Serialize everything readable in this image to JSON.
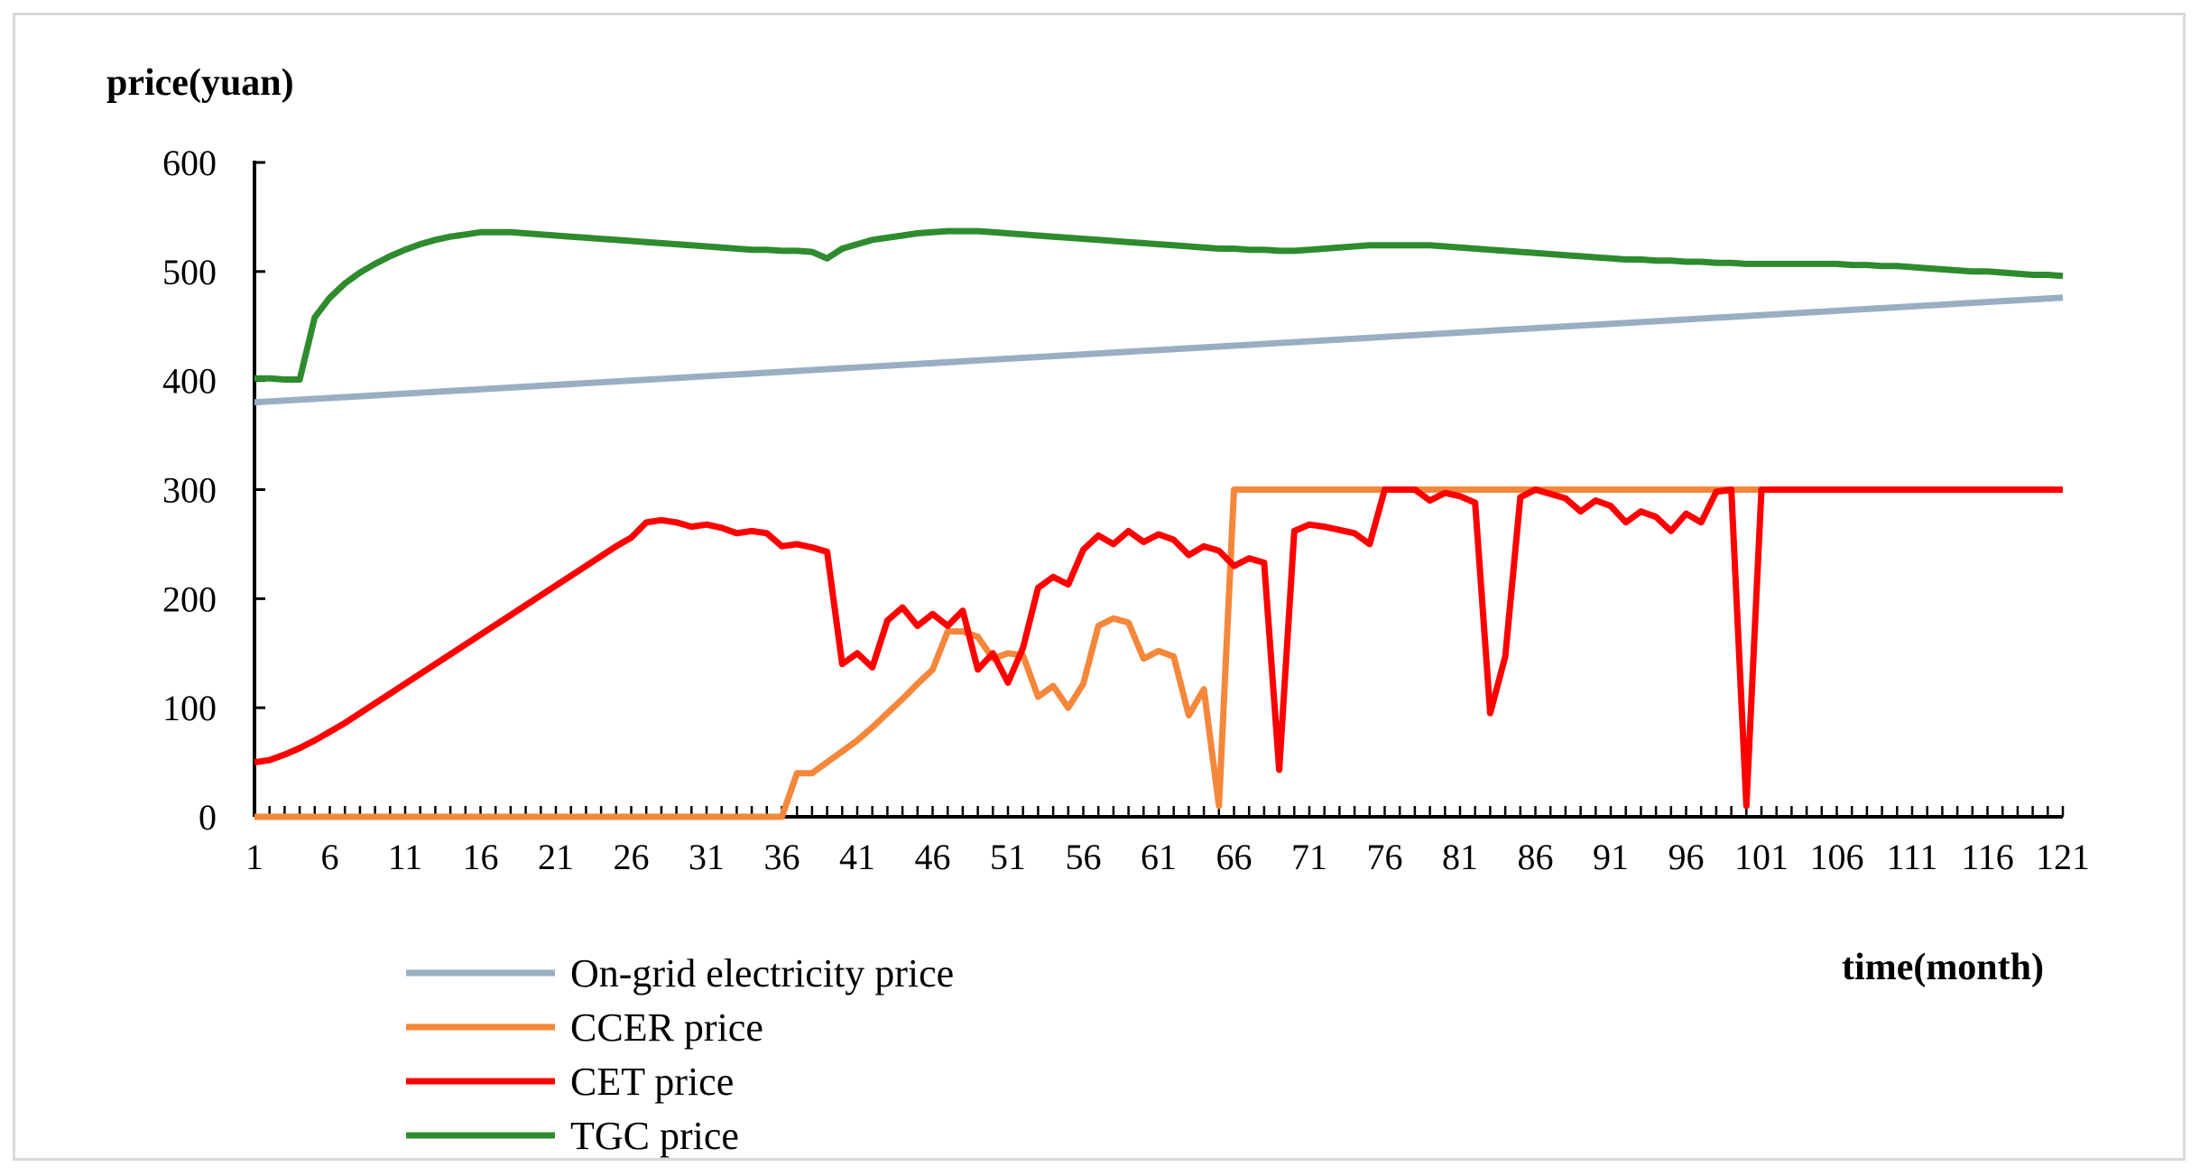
{
  "chart_data": {
    "type": "line",
    "ylabel": "price(yuan)",
    "xlabel": "time(month)",
    "ylim": [
      0,
      600
    ],
    "yticks": [
      0,
      100,
      200,
      300,
      400,
      500,
      600
    ],
    "xlim": [
      1,
      121
    ],
    "xtick_labels": [
      1,
      6,
      11,
      16,
      21,
      26,
      31,
      36,
      41,
      46,
      51,
      56,
      61,
      66,
      71,
      76,
      81,
      86,
      91,
      96,
      101,
      106,
      111,
      116,
      121
    ],
    "grid": false,
    "legend_position": "bottom-left",
    "series": [
      {
        "name": "On-grid electricity price",
        "color": "#9aaec3",
        "points": [
          [
            1,
            380
          ],
          [
            121,
            476
          ]
        ]
      },
      {
        "name": "CCER price",
        "color": "#f5873a",
        "points": [
          [
            1,
            0
          ],
          [
            36,
            0
          ],
          [
            37,
            40
          ],
          [
            38,
            40
          ],
          [
            39,
            50
          ],
          [
            40,
            60
          ],
          [
            41,
            70
          ],
          [
            42,
            82
          ],
          [
            43,
            95
          ],
          [
            44,
            108
          ],
          [
            45,
            122
          ],
          [
            46,
            135
          ],
          [
            47,
            170
          ],
          [
            48,
            170
          ],
          [
            49,
            165
          ],
          [
            50,
            145
          ],
          [
            51,
            150
          ],
          [
            52,
            148
          ],
          [
            53,
            110
          ],
          [
            54,
            120
          ],
          [
            55,
            100
          ],
          [
            56,
            122
          ],
          [
            57,
            175
          ],
          [
            58,
            182
          ],
          [
            59,
            178
          ],
          [
            60,
            145
          ],
          [
            61,
            152
          ],
          [
            62,
            147
          ],
          [
            63,
            93
          ],
          [
            64,
            117
          ],
          [
            65,
            10
          ],
          [
            66,
            300
          ],
          [
            121,
            300
          ]
        ]
      },
      {
        "name": "CET price",
        "color": "#ff0000",
        "points": [
          [
            1,
            50
          ],
          [
            2,
            52
          ],
          [
            3,
            57
          ],
          [
            4,
            63
          ],
          [
            5,
            70
          ],
          [
            6,
            78
          ],
          [
            7,
            86
          ],
          [
            8,
            95
          ],
          [
            9,
            104
          ],
          [
            10,
            113
          ],
          [
            11,
            122
          ],
          [
            12,
            131
          ],
          [
            13,
            140
          ],
          [
            14,
            149
          ],
          [
            15,
            158
          ],
          [
            16,
            167
          ],
          [
            17,
            176
          ],
          [
            18,
            185
          ],
          [
            19,
            194
          ],
          [
            20,
            203
          ],
          [
            21,
            212
          ],
          [
            22,
            221
          ],
          [
            23,
            230
          ],
          [
            24,
            239
          ],
          [
            25,
            248
          ],
          [
            26,
            256
          ],
          [
            27,
            270
          ],
          [
            28,
            272
          ],
          [
            29,
            270
          ],
          [
            30,
            266
          ],
          [
            31,
            268
          ],
          [
            32,
            265
          ],
          [
            33,
            260
          ],
          [
            34,
            262
          ],
          [
            35,
            260
          ],
          [
            36,
            248
          ],
          [
            37,
            250
          ],
          [
            38,
            247
          ],
          [
            39,
            243
          ],
          [
            40,
            140
          ],
          [
            41,
            150
          ],
          [
            42,
            137
          ],
          [
            43,
            180
          ],
          [
            44,
            192
          ],
          [
            45,
            175
          ],
          [
            46,
            186
          ],
          [
            47,
            175
          ],
          [
            48,
            189
          ],
          [
            49,
            135
          ],
          [
            50,
            150
          ],
          [
            51,
            123
          ],
          [
            52,
            155
          ],
          [
            53,
            210
          ],
          [
            54,
            220
          ],
          [
            55,
            213
          ],
          [
            56,
            245
          ],
          [
            57,
            258
          ],
          [
            58,
            250
          ],
          [
            59,
            262
          ],
          [
            60,
            252
          ],
          [
            61,
            259
          ],
          [
            62,
            254
          ],
          [
            63,
            240
          ],
          [
            64,
            248
          ],
          [
            65,
            244
          ],
          [
            66,
            230
          ],
          [
            67,
            237
          ],
          [
            68,
            233
          ],
          [
            69,
            43
          ],
          [
            70,
            262
          ],
          [
            71,
            268
          ],
          [
            72,
            266
          ],
          [
            73,
            263
          ],
          [
            74,
            260
          ],
          [
            75,
            250
          ],
          [
            76,
            300
          ],
          [
            77,
            300
          ],
          [
            78,
            300
          ],
          [
            79,
            290
          ],
          [
            80,
            297
          ],
          [
            81,
            294
          ],
          [
            82,
            288
          ],
          [
            83,
            95
          ],
          [
            84,
            147
          ],
          [
            85,
            293
          ],
          [
            86,
            300
          ],
          [
            87,
            296
          ],
          [
            88,
            292
          ],
          [
            89,
            280
          ],
          [
            90,
            290
          ],
          [
            91,
            285
          ],
          [
            92,
            270
          ],
          [
            93,
            280
          ],
          [
            94,
            275
          ],
          [
            95,
            262
          ],
          [
            96,
            278
          ],
          [
            97,
            270
          ],
          [
            98,
            298
          ],
          [
            99,
            300
          ],
          [
            100,
            10
          ],
          [
            101,
            300
          ],
          [
            121,
            300
          ]
        ]
      },
      {
        "name": "TGC price",
        "color": "#2e8b2e",
        "points": [
          [
            1,
            402
          ],
          [
            2,
            402
          ],
          [
            3,
            401
          ],
          [
            4,
            401
          ],
          [
            5,
            458
          ],
          [
            6,
            476
          ],
          [
            7,
            489
          ],
          [
            8,
            499
          ],
          [
            9,
            507
          ],
          [
            10,
            514
          ],
          [
            11,
            520
          ],
          [
            12,
            525
          ],
          [
            13,
            529
          ],
          [
            14,
            532
          ],
          [
            15,
            534
          ],
          [
            16,
            536
          ],
          [
            17,
            536
          ],
          [
            18,
            536
          ],
          [
            19,
            535
          ],
          [
            20,
            534
          ],
          [
            21,
            533
          ],
          [
            22,
            532
          ],
          [
            23,
            531
          ],
          [
            24,
            530
          ],
          [
            25,
            529
          ],
          [
            26,
            528
          ],
          [
            27,
            527
          ],
          [
            28,
            526
          ],
          [
            29,
            525
          ],
          [
            30,
            524
          ],
          [
            31,
            523
          ],
          [
            32,
            522
          ],
          [
            33,
            521
          ],
          [
            34,
            520
          ],
          [
            35,
            520
          ],
          [
            36,
            519
          ],
          [
            37,
            519
          ],
          [
            38,
            518
          ],
          [
            39,
            512
          ],
          [
            40,
            521
          ],
          [
            41,
            525
          ],
          [
            42,
            529
          ],
          [
            43,
            531
          ],
          [
            44,
            533
          ],
          [
            45,
            535
          ],
          [
            46,
            536
          ],
          [
            47,
            537
          ],
          [
            48,
            537
          ],
          [
            49,
            537
          ],
          [
            50,
            536
          ],
          [
            51,
            535
          ],
          [
            52,
            534
          ],
          [
            53,
            533
          ],
          [
            54,
            532
          ],
          [
            55,
            531
          ],
          [
            56,
            530
          ],
          [
            57,
            529
          ],
          [
            58,
            528
          ],
          [
            59,
            527
          ],
          [
            60,
            526
          ],
          [
            61,
            525
          ],
          [
            62,
            524
          ],
          [
            63,
            523
          ],
          [
            64,
            522
          ],
          [
            65,
            521
          ],
          [
            66,
            521
          ],
          [
            67,
            520
          ],
          [
            68,
            520
          ],
          [
            69,
            519
          ],
          [
            70,
            519
          ],
          [
            71,
            520
          ],
          [
            72,
            521
          ],
          [
            73,
            522
          ],
          [
            74,
            523
          ],
          [
            75,
            524
          ],
          [
            76,
            524
          ],
          [
            77,
            524
          ],
          [
            78,
            524
          ],
          [
            79,
            524
          ],
          [
            80,
            523
          ],
          [
            81,
            522
          ],
          [
            82,
            521
          ],
          [
            83,
            520
          ],
          [
            84,
            519
          ],
          [
            85,
            518
          ],
          [
            86,
            517
          ],
          [
            87,
            516
          ],
          [
            88,
            515
          ],
          [
            89,
            514
          ],
          [
            90,
            513
          ],
          [
            91,
            512
          ],
          [
            92,
            511
          ],
          [
            93,
            511
          ],
          [
            94,
            510
          ],
          [
            95,
            510
          ],
          [
            96,
            509
          ],
          [
            97,
            509
          ],
          [
            98,
            508
          ],
          [
            99,
            508
          ],
          [
            100,
            507
          ],
          [
            101,
            507
          ],
          [
            102,
            507
          ],
          [
            103,
            507
          ],
          [
            104,
            507
          ],
          [
            105,
            507
          ],
          [
            106,
            507
          ],
          [
            107,
            506
          ],
          [
            108,
            506
          ],
          [
            109,
            505
          ],
          [
            110,
            505
          ],
          [
            111,
            504
          ],
          [
            112,
            503
          ],
          [
            113,
            502
          ],
          [
            114,
            501
          ],
          [
            115,
            500
          ],
          [
            116,
            500
          ],
          [
            117,
            499
          ],
          [
            118,
            498
          ],
          [
            119,
            497
          ],
          [
            120,
            497
          ],
          [
            121,
            496
          ]
        ]
      }
    ]
  }
}
